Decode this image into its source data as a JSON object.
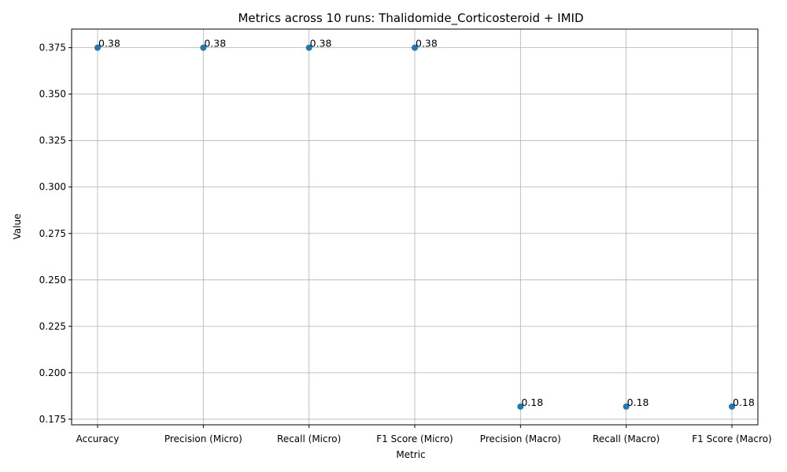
{
  "chart_data": {
    "type": "scatter",
    "title": "Metrics across 10 runs: Thalidomide_Corticosteroid + IMID",
    "xlabel": "Metric",
    "ylabel": "Value",
    "categories": [
      "Accuracy",
      "Precision (Micro)",
      "Recall (Micro)",
      "F1 Score (Micro)",
      "Precision (Macro)",
      "Recall (Macro)",
      "F1 Score (Macro)"
    ],
    "values": [
      0.375,
      0.375,
      0.375,
      0.375,
      0.1818,
      0.1818,
      0.1818
    ],
    "data_labels": [
      "0.38",
      "0.38",
      "0.38",
      "0.38",
      "0.18",
      "0.18",
      "0.18"
    ],
    "ylim": [
      0.172,
      0.385
    ],
    "yticks": [
      0.175,
      0.2,
      0.225,
      0.25,
      0.275,
      0.3,
      0.325,
      0.35,
      0.375
    ],
    "ytick_labels": [
      "0.175",
      "0.200",
      "0.225",
      "0.250",
      "0.275",
      "0.300",
      "0.325",
      "0.350",
      "0.375"
    ],
    "grid": true,
    "marker_color": "#1f77b4"
  }
}
